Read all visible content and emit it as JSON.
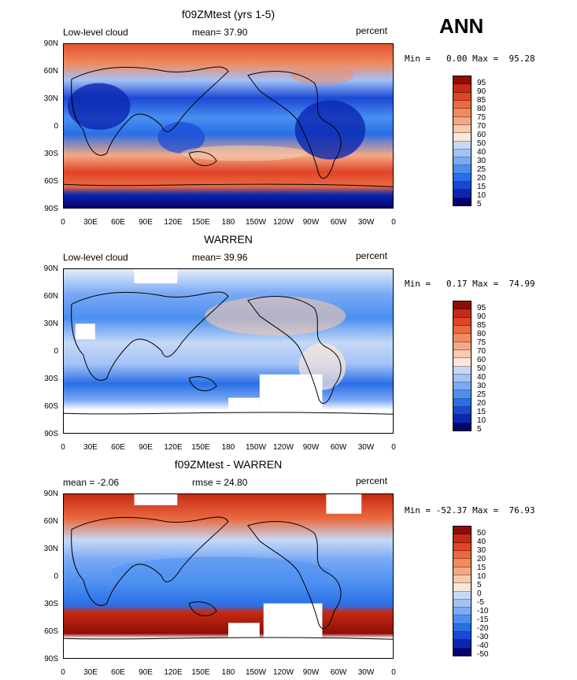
{
  "season": "ANN",
  "colors": {
    "scale": [
      "#08006d",
      "#0a27b0",
      "#1a48d4",
      "#2a6ee6",
      "#4a8ff0",
      "#7aa9f5",
      "#a3c2f7",
      "#c5d9f6",
      "#e3eef8",
      "#fbe7da",
      "#f7c9ad",
      "#f4a985",
      "#f08a60",
      "#ea6a40",
      "#e0442a",
      "#c62a14",
      "#8f0d06"
    ],
    "land": "#000000",
    "missing": "#ffffff"
  },
  "icons": {
    "land_outline": "coastline-icon"
  },
  "axes": {
    "y_ticks": [
      "90N",
      "60N",
      "30N",
      "0",
      "30S",
      "60S",
      "90S"
    ],
    "x_ticks": [
      "0",
      "30E",
      "60E",
      "90E",
      "120E",
      "150E",
      "180",
      "150W",
      "120W",
      "90W",
      "60W",
      "30W",
      "0"
    ]
  },
  "panels": [
    {
      "title": "f09ZMtest (yrs 1-5)",
      "left_label": "Low-level cloud",
      "mid_label": "mean=  37.90",
      "right_label": "percent",
      "minmax": "Min =   0.00 Max =  95.28",
      "colorbar_labels": [
        "95",
        "90",
        "85",
        "80",
        "75",
        "70",
        "60",
        "50",
        "40",
        "30",
        "25",
        "20",
        "15",
        "10",
        "5"
      ]
    },
    {
      "title": "WARREN",
      "left_label": "Low-level cloud",
      "mid_label": "mean=  39.96",
      "right_label": "percent",
      "minmax": "Min =   0.17 Max =  74.99",
      "colorbar_labels": [
        "95",
        "90",
        "85",
        "80",
        "75",
        "70",
        "60",
        "50",
        "40",
        "30",
        "25",
        "20",
        "15",
        "10",
        "5"
      ]
    },
    {
      "title": "f09ZMtest - WARREN",
      "left_label": "mean = -2.06",
      "mid_label": "rmse =  24.80",
      "right_label": "percent",
      "minmax": "Min = -52.37 Max =  76.93",
      "colorbar_labels": [
        "50",
        "40",
        "30",
        "20",
        "15",
        "10",
        "5",
        "0",
        "-5",
        "-10",
        "-15",
        "-20",
        "-30",
        "-40",
        "-50"
      ]
    }
  ]
}
